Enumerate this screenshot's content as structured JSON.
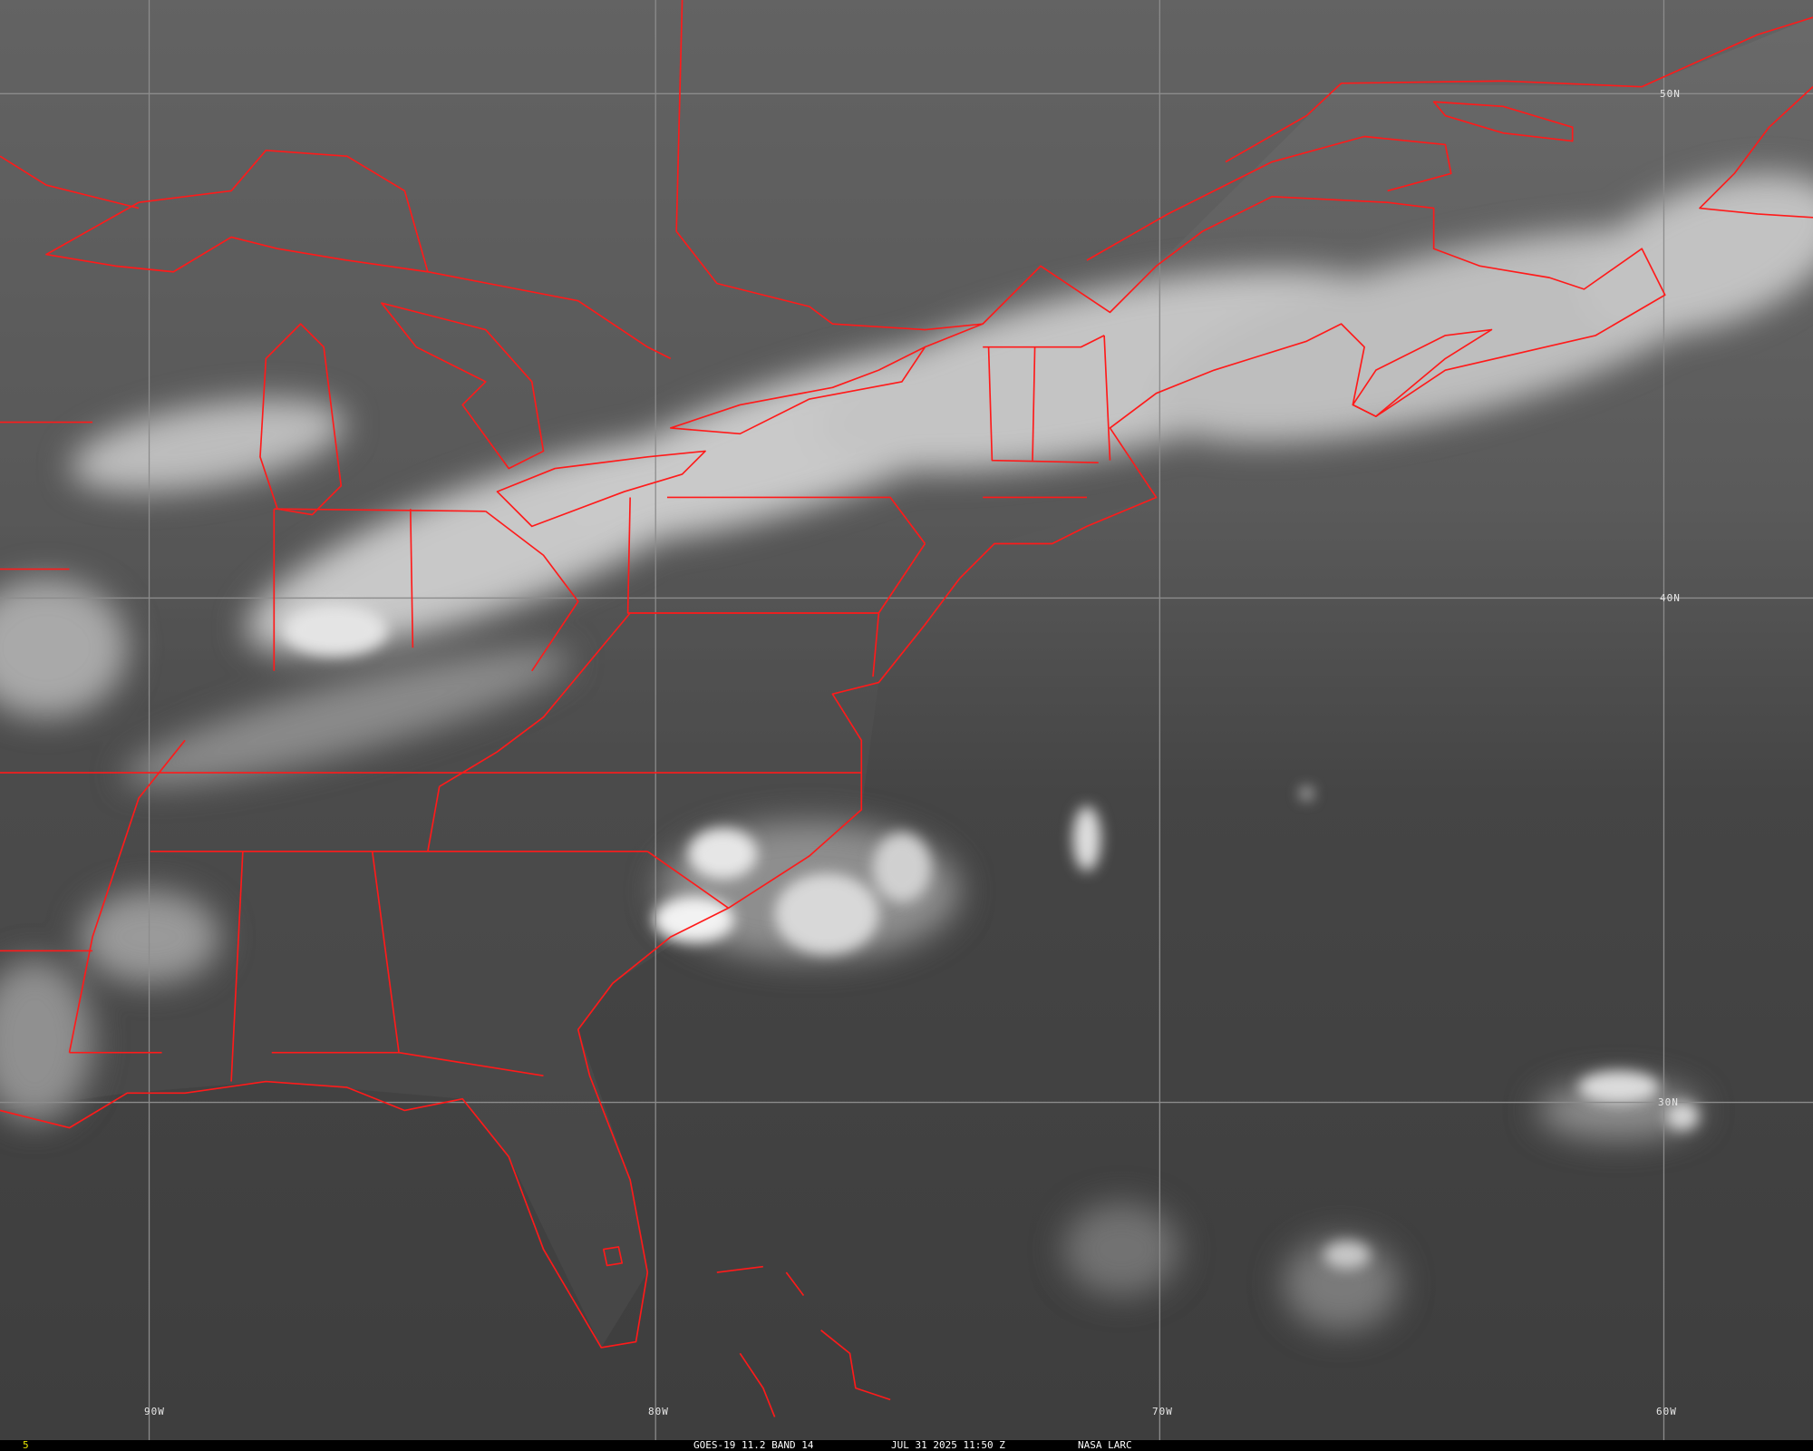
{
  "image": {
    "satellite_caption": "GOES-19 11.2 BAND 14",
    "timestamp": "JUL 31 2025 11:50 Z",
    "credit": "NASA LARC",
    "frame_number": "5",
    "frame_number_color": "#e8e800",
    "border_color": "#ff0000",
    "grid_color": "#8c8c8c"
  },
  "grid": {
    "longitude_labels": [
      "90W",
      "80W",
      "70W",
      "60W"
    ],
    "latitude_labels": [
      "50N",
      "40N",
      "30N"
    ]
  }
}
